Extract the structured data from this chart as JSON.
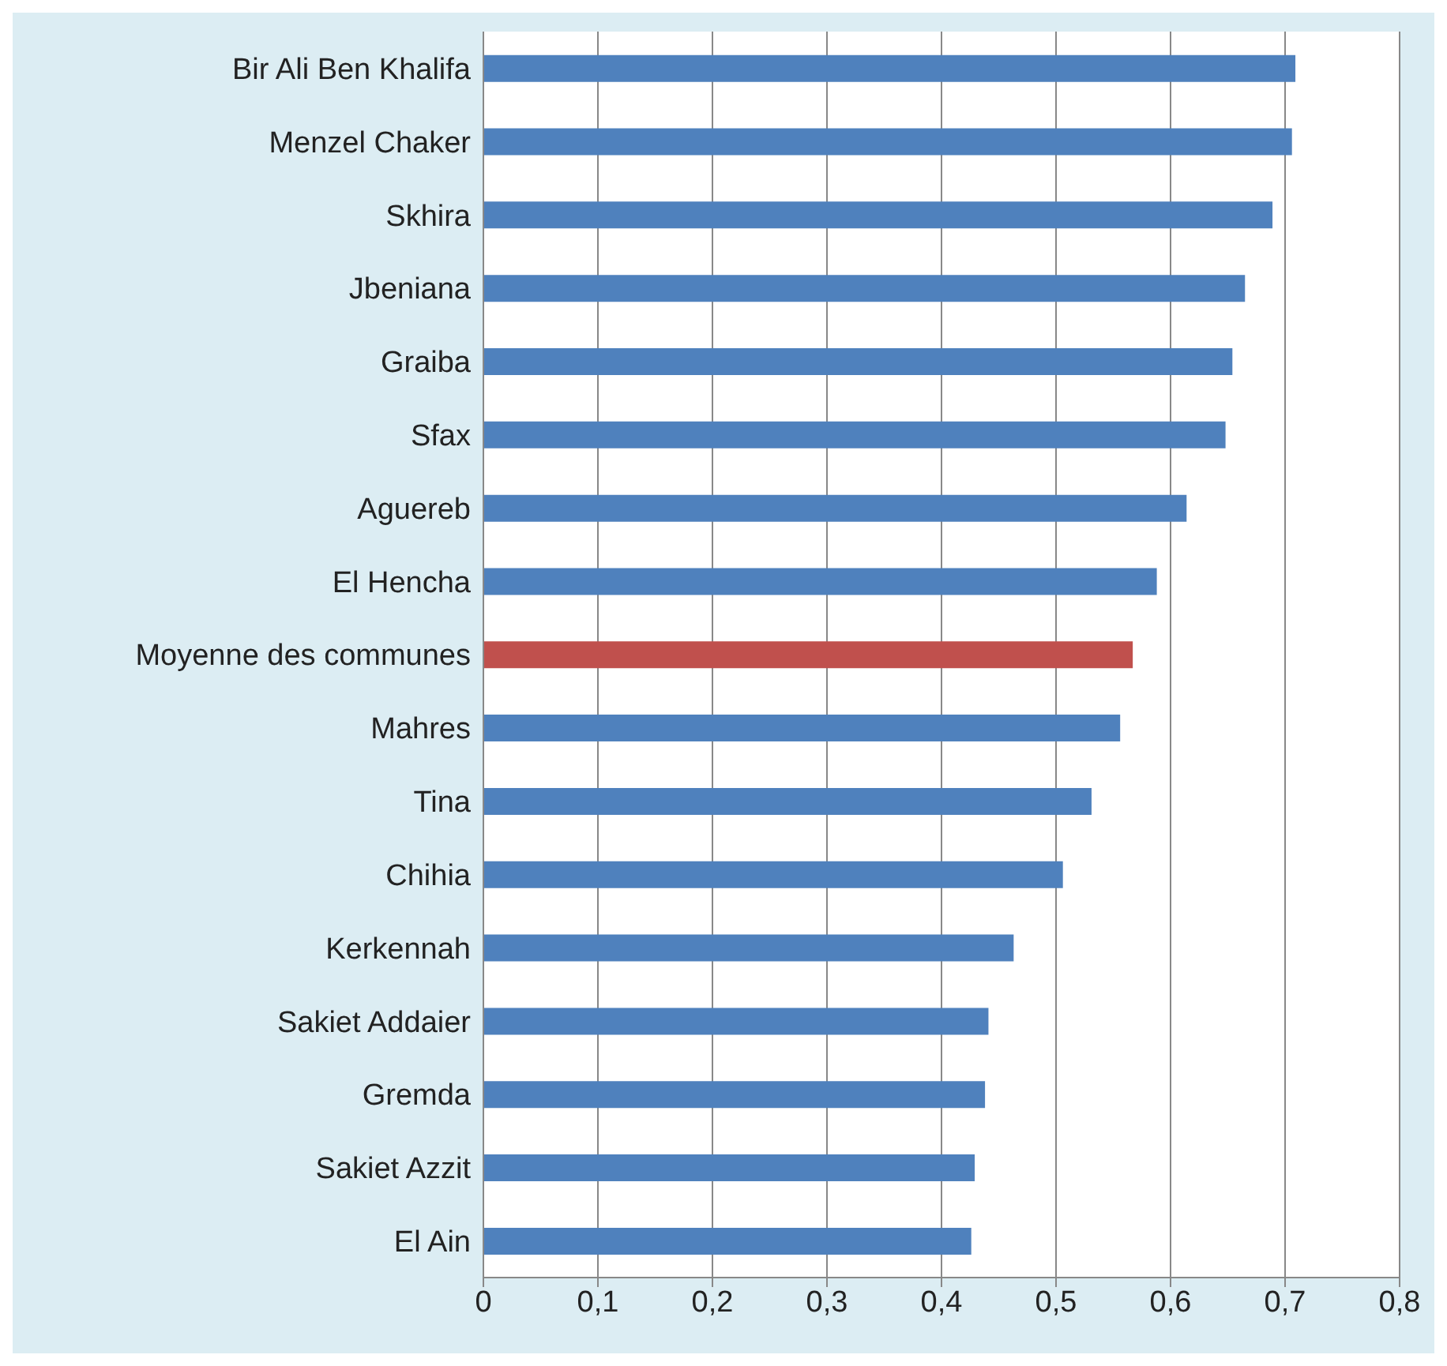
{
  "chart_data": {
    "type": "bar",
    "orientation": "horizontal",
    "categories": [
      "Bir Ali Ben Khalifa",
      "Menzel Chaker",
      "Skhira",
      "Jbeniana",
      "Graiba",
      "Sfax",
      "Aguereb",
      "El Hencha",
      "Moyenne des communes",
      "Mahres",
      "Tina",
      "Chihia",
      "Kerkennah",
      "Sakiet Addaier",
      "Gremda",
      "Sakiet Azzit",
      "El Ain"
    ],
    "values": [
      0.709,
      0.706,
      0.689,
      0.665,
      0.654,
      0.648,
      0.614,
      0.588,
      0.567,
      0.556,
      0.531,
      0.506,
      0.463,
      0.441,
      0.438,
      0.429,
      0.426
    ],
    "colors": [
      "#4f81bd",
      "#4f81bd",
      "#4f81bd",
      "#4f81bd",
      "#4f81bd",
      "#4f81bd",
      "#4f81bd",
      "#4f81bd",
      "#c0504d",
      "#4f81bd",
      "#4f81bd",
      "#4f81bd",
      "#4f81bd",
      "#4f81bd",
      "#4f81bd",
      "#4f81bd",
      "#4f81bd"
    ],
    "xlim": [
      0,
      0.8
    ],
    "xticks": [
      0,
      {
        "value": 0.1,
        "label": "0,1"
      },
      {
        "value": 0.2,
        "label": "0,2"
      },
      {
        "value": 0.3,
        "label": "0,3"
      },
      {
        "value": 0.4,
        "label": "0,4"
      },
      {
        "value": 0.5,
        "label": "0,5"
      },
      {
        "value": 0.6,
        "label": "0,6"
      },
      {
        "value": 0.7,
        "label": "0,7"
      },
      {
        "value": 0.8,
        "label": "0,8"
      }
    ],
    "grid": "x"
  }
}
